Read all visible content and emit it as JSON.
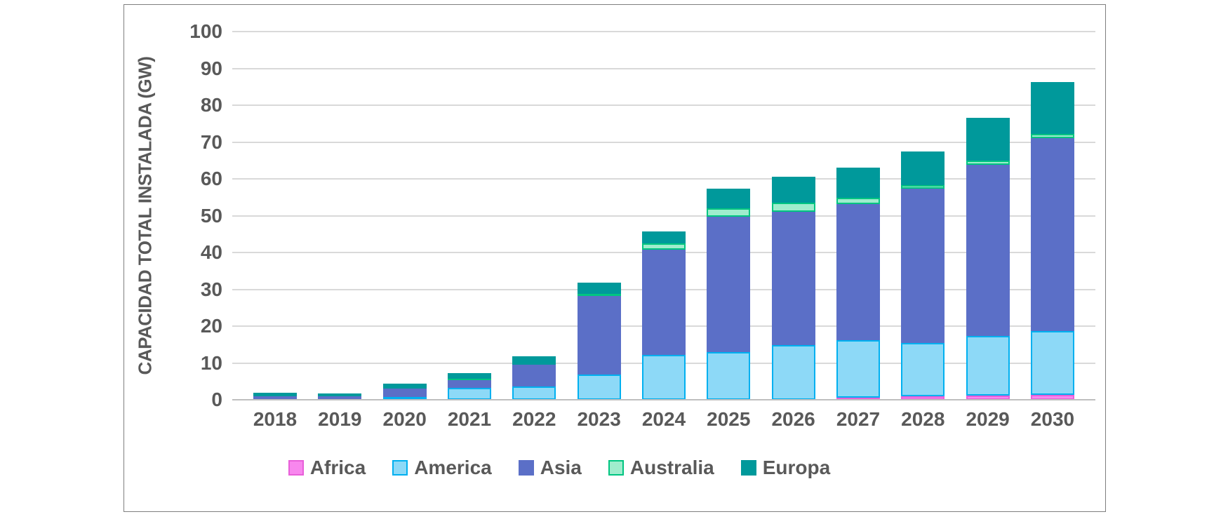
{
  "chart_data": {
    "type": "bar",
    "stacked": true,
    "title": "",
    "xlabel": "",
    "ylabel": "CAPACIDAD TOTAL INSTALADA (GW)",
    "ylim": [
      0,
      100
    ],
    "y_ticks": [
      0,
      10,
      20,
      30,
      40,
      50,
      60,
      70,
      80,
      90,
      100
    ],
    "grid": true,
    "legend_position": "bottom",
    "categories": [
      "2018",
      "2019",
      "2020",
      "2021",
      "2022",
      "2023",
      "2024",
      "2025",
      "2026",
      "2027",
      "2028",
      "2029",
      "2030"
    ],
    "series": [
      {
        "name": "Africa",
        "color": "#f887ee",
        "border": "#e85fd9",
        "values": [
          0,
          0,
          0,
          0,
          0,
          0,
          0,
          0,
          0,
          0.5,
          0.9,
          1.1,
          1.4
        ]
      },
      {
        "name": "America",
        "color": "#8dd9f7",
        "border": "#00b0f0",
        "values": [
          0.1,
          0.1,
          0.8,
          3.3,
          3.7,
          6.8,
          12.2,
          13.0,
          14.9,
          15.6,
          14.6,
          16.2,
          17.3
        ]
      },
      {
        "name": "Asia",
        "color": "#5b6fc7",
        "border": "#5b6fc7",
        "values": [
          0.9,
          0.8,
          2.2,
          2.1,
          5.9,
          21.4,
          28.5,
          36.7,
          36.2,
          37.0,
          41.9,
          46.6,
          52.4
        ]
      },
      {
        "name": "Australia",
        "color": "#9fedcd",
        "border": "#00c581",
        "values": [
          0,
          0,
          0,
          0.3,
          0,
          0.6,
          1.8,
          2.3,
          2.5,
          1.7,
          0.8,
          1.1,
          1.1
        ]
      },
      {
        "name": "Europa",
        "color": "#00999b",
        "border": "#00999b",
        "values": [
          0.9,
          0.9,
          1.3,
          1.5,
          2.3,
          3.0,
          3.3,
          5.3,
          6.9,
          8.2,
          9.3,
          11.6,
          14.0
        ]
      }
    ],
    "totals": [
      1.9,
      1.8,
      4.3,
      7.2,
      11.9,
      31.8,
      45.8,
      57.3,
      60.5,
      63.0,
      67.5,
      76.6,
      86.2
    ],
    "style": {
      "grid_color": "#d9d9d9",
      "axis_line_color": "#bfbfbf",
      "text_color": "#595959",
      "frame_color": "#7f7f7f"
    }
  }
}
